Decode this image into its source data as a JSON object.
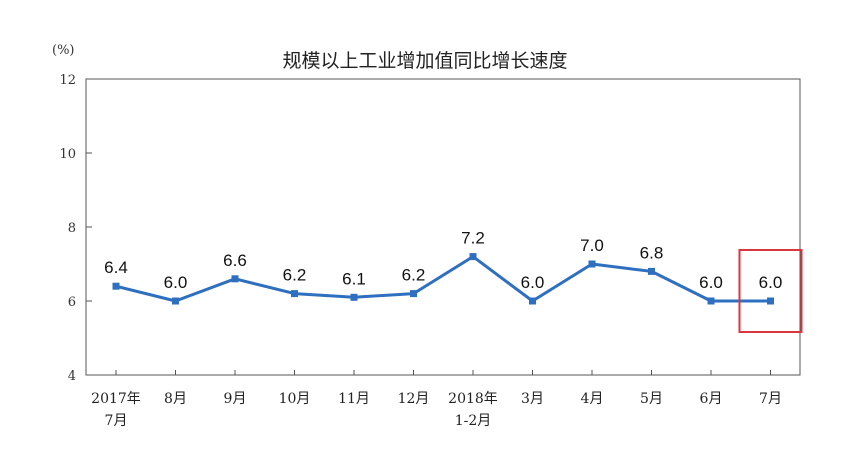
{
  "chart_data": {
    "type": "line",
    "title": "规模以上工业增加值同比增长速度",
    "unit": "(%)",
    "ylim": [
      4,
      12
    ],
    "yticks": [
      4,
      6,
      8,
      10,
      12
    ],
    "grid": false,
    "categories": [
      [
        "2017年",
        "7月"
      ],
      [
        "8月"
      ],
      [
        "9月"
      ],
      [
        "10月"
      ],
      [
        "11月"
      ],
      [
        "12月"
      ],
      [
        "2018年",
        "1-2月"
      ],
      [
        "3月"
      ],
      [
        "4月"
      ],
      [
        "5月"
      ],
      [
        "6月"
      ],
      [
        "7月"
      ]
    ],
    "values": [
      6.4,
      6.0,
      6.6,
      6.2,
      6.1,
      6.2,
      7.2,
      6.0,
      7.0,
      6.8,
      6.0,
      6.0
    ],
    "labels": [
      "6.4",
      "6.0",
      "6.6",
      "6.2",
      "6.1",
      "6.2",
      "7.2",
      "6.0",
      "7.0",
      "6.8",
      "6.0",
      "6.0"
    ],
    "highlight_index": 11,
    "colors": {
      "line": "#2e6fc0",
      "highlight": "#d9363e",
      "frame": "#555555"
    }
  }
}
